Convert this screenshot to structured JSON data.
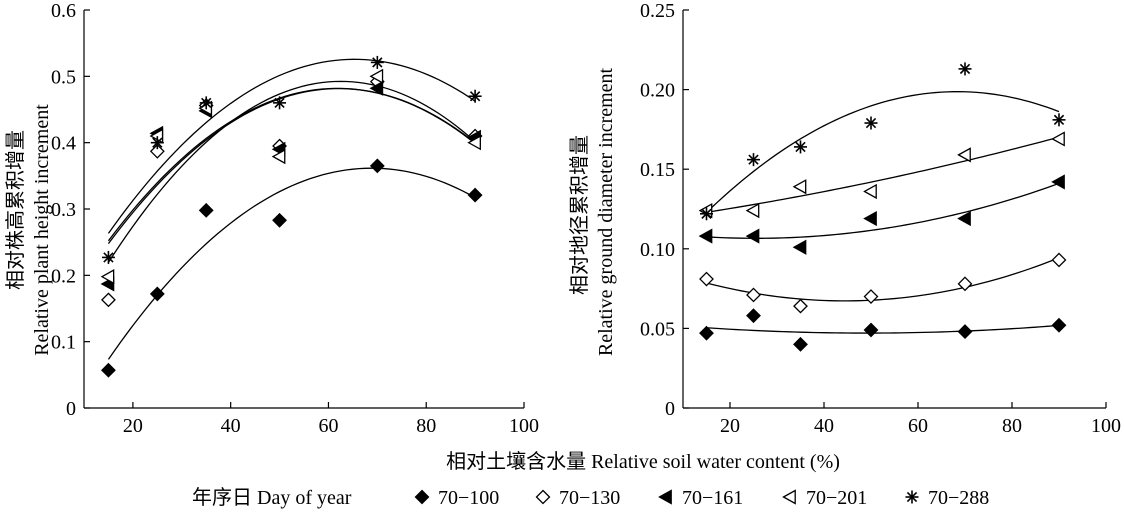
{
  "figure": {
    "xlabel": "相对土壤含水量 Relative soil water content (%)",
    "legend_title": "年序日 Day of year"
  },
  "chart_data": [
    {
      "type": "scatter",
      "xlabel": "",
      "ylabel_cn": "相对株高累积增量",
      "ylabel_en": "Relative plant height increment",
      "xlim": [
        10,
        100
      ],
      "ylim": [
        0,
        0.6
      ],
      "xticks": [
        20,
        40,
        60,
        80,
        100
      ],
      "yticks": [
        0,
        0.1,
        0.2,
        0.3,
        0.4,
        0.5,
        0.6
      ],
      "ytick_labels": [
        "0",
        "0.1",
        "0.2",
        "0.3",
        "0.4",
        "0.5",
        "0.6"
      ],
      "trendline": "quadratic",
      "series": [
        {
          "name": "70−100",
          "marker": "filled-diamond",
          "x": [
            15,
            25,
            35,
            50,
            70,
            90
          ],
          "y": [
            0.057,
            0.172,
            0.298,
            0.283,
            0.365,
            0.321
          ]
        },
        {
          "name": "70−130",
          "marker": "open-diamond",
          "x": [
            15,
            25,
            35,
            50,
            70,
            90
          ],
          "y": [
            0.163,
            0.387,
            0.456,
            0.395,
            0.492,
            0.41
          ]
        },
        {
          "name": "70−161",
          "marker": "filled-triangle-left",
          "x": [
            15,
            25,
            35,
            50,
            70,
            90
          ],
          "y": [
            0.187,
            0.414,
            0.448,
            0.39,
            0.482,
            0.408
          ]
        },
        {
          "name": "70−201",
          "marker": "open-triangle-left",
          "x": [
            15,
            25,
            35,
            50,
            70,
            90
          ],
          "y": [
            0.198,
            0.41,
            0.452,
            0.379,
            0.5,
            0.4
          ]
        },
        {
          "name": "70−288",
          "marker": "asterisk",
          "x": [
            15,
            25,
            35,
            50,
            70,
            90
          ],
          "y": [
            0.227,
            0.4,
            0.46,
            0.46,
            0.521,
            0.47
          ]
        }
      ]
    },
    {
      "type": "scatter",
      "xlabel": "",
      "ylabel_cn": "相对地径累积增量",
      "ylabel_en": "Relative ground diameter increment",
      "xlim": [
        10,
        100
      ],
      "ylim": [
        0,
        0.25
      ],
      "xticks": [
        20,
        40,
        60,
        80,
        100
      ],
      "yticks": [
        0,
        0.05,
        0.1,
        0.15,
        0.2,
        0.25
      ],
      "ytick_labels": [
        "0",
        "0.05",
        "0.10",
        "0.15",
        "0.20",
        "0.25"
      ],
      "trendline": "quadratic",
      "series": [
        {
          "name": "70−100",
          "marker": "filled-diamond",
          "x": [
            15,
            25,
            35,
            50,
            70,
            90
          ],
          "y": [
            0.047,
            0.058,
            0.04,
            0.049,
            0.048,
            0.052
          ]
        },
        {
          "name": "70−130",
          "marker": "open-diamond",
          "x": [
            15,
            25,
            35,
            50,
            70,
            90
          ],
          "y": [
            0.081,
            0.071,
            0.064,
            0.07,
            0.078,
            0.093
          ]
        },
        {
          "name": "70−161",
          "marker": "filled-triangle-left",
          "x": [
            15,
            25,
            35,
            50,
            70,
            90
          ],
          "y": [
            0.108,
            0.108,
            0.101,
            0.119,
            0.119,
            0.142
          ]
        },
        {
          "name": "70−201",
          "marker": "open-triangle-left",
          "x": [
            15,
            25,
            35,
            50,
            70,
            90
          ],
          "y": [
            0.124,
            0.124,
            0.139,
            0.136,
            0.159,
            0.169
          ]
        },
        {
          "name": "70−288",
          "marker": "asterisk",
          "x": [
            15,
            25,
            35,
            50,
            70,
            90
          ],
          "y": [
            0.122,
            0.156,
            0.164,
            0.179,
            0.213,
            0.181
          ]
        }
      ]
    }
  ]
}
